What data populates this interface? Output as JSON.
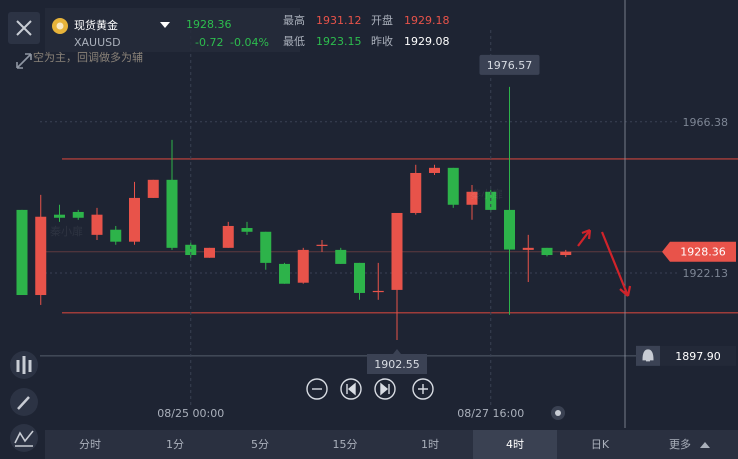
{
  "header": {
    "title": "现货黄金",
    "price": "1928.36",
    "symbol": "XAUUSD",
    "change": "-0.72",
    "change_pct": "-0.04%",
    "high_label": "最高",
    "high": "1931.12",
    "open_label": "开盘",
    "open": "1929.18",
    "low_label": "最低",
    "low": "1923.15",
    "prev_label": "昨收",
    "prev": "1929.08"
  },
  "note": "空为主，回调做多为辅",
  "watermark": "秦小扉",
  "chart_data": {
    "type": "candlestick",
    "up_color": "#e8534a",
    "down_color": "#2db34a",
    "ylim": [
      1876.8,
      2002.0
    ],
    "yticks": [
      1966.38,
      1922.13
    ],
    "categories": [
      null,
      null,
      null,
      null,
      null,
      null,
      null,
      null,
      null,
      "08/25 00:00",
      null,
      null,
      null,
      null,
      null,
      null,
      null,
      null,
      null,
      null,
      null,
      null,
      null,
      null,
      null,
      "08/27 16:00",
      null,
      null,
      null,
      null
    ],
    "candles": [
      {
        "open": 1940.6,
        "high": 1940.6,
        "low": 1915.7,
        "close": 1915.7
      },
      {
        "open": 1915.7,
        "high": 1945.0,
        "low": 1912.8,
        "close": 1938.6
      },
      {
        "open": 1939.2,
        "high": 1942.1,
        "low": 1937.1,
        "close": 1938.3
      },
      {
        "open": 1940.0,
        "high": 1940.6,
        "low": 1937.7,
        "close": 1938.3
      },
      {
        "open": 1933.3,
        "high": 1941.2,
        "low": 1931.8,
        "close": 1939.2
      },
      {
        "open": 1934.8,
        "high": 1935.9,
        "low": 1930.4,
        "close": 1931.3
      },
      {
        "open": 1931.3,
        "high": 1948.8,
        "low": 1930.4,
        "close": 1944.1
      },
      {
        "open": 1944.1,
        "high": 1949.4,
        "low": 1944.1,
        "close": 1949.4
      },
      {
        "open": 1949.4,
        "high": 1961.1,
        "low": 1928.9,
        "close": 1929.5
      },
      {
        "open": 1930.4,
        "high": 1931.3,
        "low": 1926.6,
        "close": 1927.4
      },
      {
        "open": 1926.6,
        "high": 1929.5,
        "low": 1926.6,
        "close": 1929.5
      },
      {
        "open": 1929.5,
        "high": 1937.1,
        "low": 1929.5,
        "close": 1935.9
      },
      {
        "open": 1935.3,
        "high": 1937.1,
        "low": 1933.3,
        "close": 1934.2
      },
      {
        "open": 1934.2,
        "high": 1934.2,
        "low": 1923.1,
        "close": 1925.1
      },
      {
        "open": 1924.8,
        "high": 1925.1,
        "low": 1919.0,
        "close": 1919.0
      },
      {
        "open": 1919.3,
        "high": 1929.5,
        "low": 1919.0,
        "close": 1928.9
      },
      {
        "open": 1930.1,
        "high": 1931.8,
        "low": 1928.3,
        "close": 1930.4
      },
      {
        "open": 1928.9,
        "high": 1929.5,
        "low": 1924.8,
        "close": 1924.8
      },
      {
        "open": 1925.1,
        "high": 1925.1,
        "low": 1914.3,
        "close": 1916.3
      },
      {
        "open": 1916.6,
        "high": 1925.1,
        "low": 1914.3,
        "close": 1916.9
      },
      {
        "open": 1917.2,
        "high": 1939.7,
        "low": 1902.55,
        "close": 1939.7
      },
      {
        "open": 1939.7,
        "high": 1953.8,
        "low": 1939.2,
        "close": 1951.4
      },
      {
        "open": 1951.4,
        "high": 1953.8,
        "low": 1950.8,
        "close": 1952.9
      },
      {
        "open": 1952.9,
        "high": 1952.9,
        "low": 1941.2,
        "close": 1942.1
      },
      {
        "open": 1942.1,
        "high": 1947.9,
        "low": 1937.7,
        "close": 1945.9
      },
      {
        "open": 1945.9,
        "high": 1946.5,
        "low": 1940.0,
        "close": 1940.6
      },
      {
        "open": 1940.6,
        "high": 1976.57,
        "low": 1909.9,
        "close": 1929.0
      },
      {
        "open": 1928.9,
        "high": 1933.3,
        "low": 1919.5,
        "close": 1929.5
      },
      {
        "open": 1929.5,
        "high": 1929.5,
        "low": 1927.0,
        "close": 1927.4
      },
      {
        "open": 1927.4,
        "high": 1928.9,
        "low": 1926.8,
        "close": 1928.36
      }
    ],
    "max_marker": 1976.57,
    "min_marker": 1902.55,
    "last_price": 1928.36,
    "alert": {
      "value": 1897.9,
      "label": "1897.90"
    },
    "levels": [
      1955.5,
      1910.5
    ]
  },
  "timeframes": [
    "分时",
    "1分",
    "5分",
    "15分",
    "1时",
    "4时",
    "日K",
    "更多"
  ],
  "selected_timeframe": 5
}
